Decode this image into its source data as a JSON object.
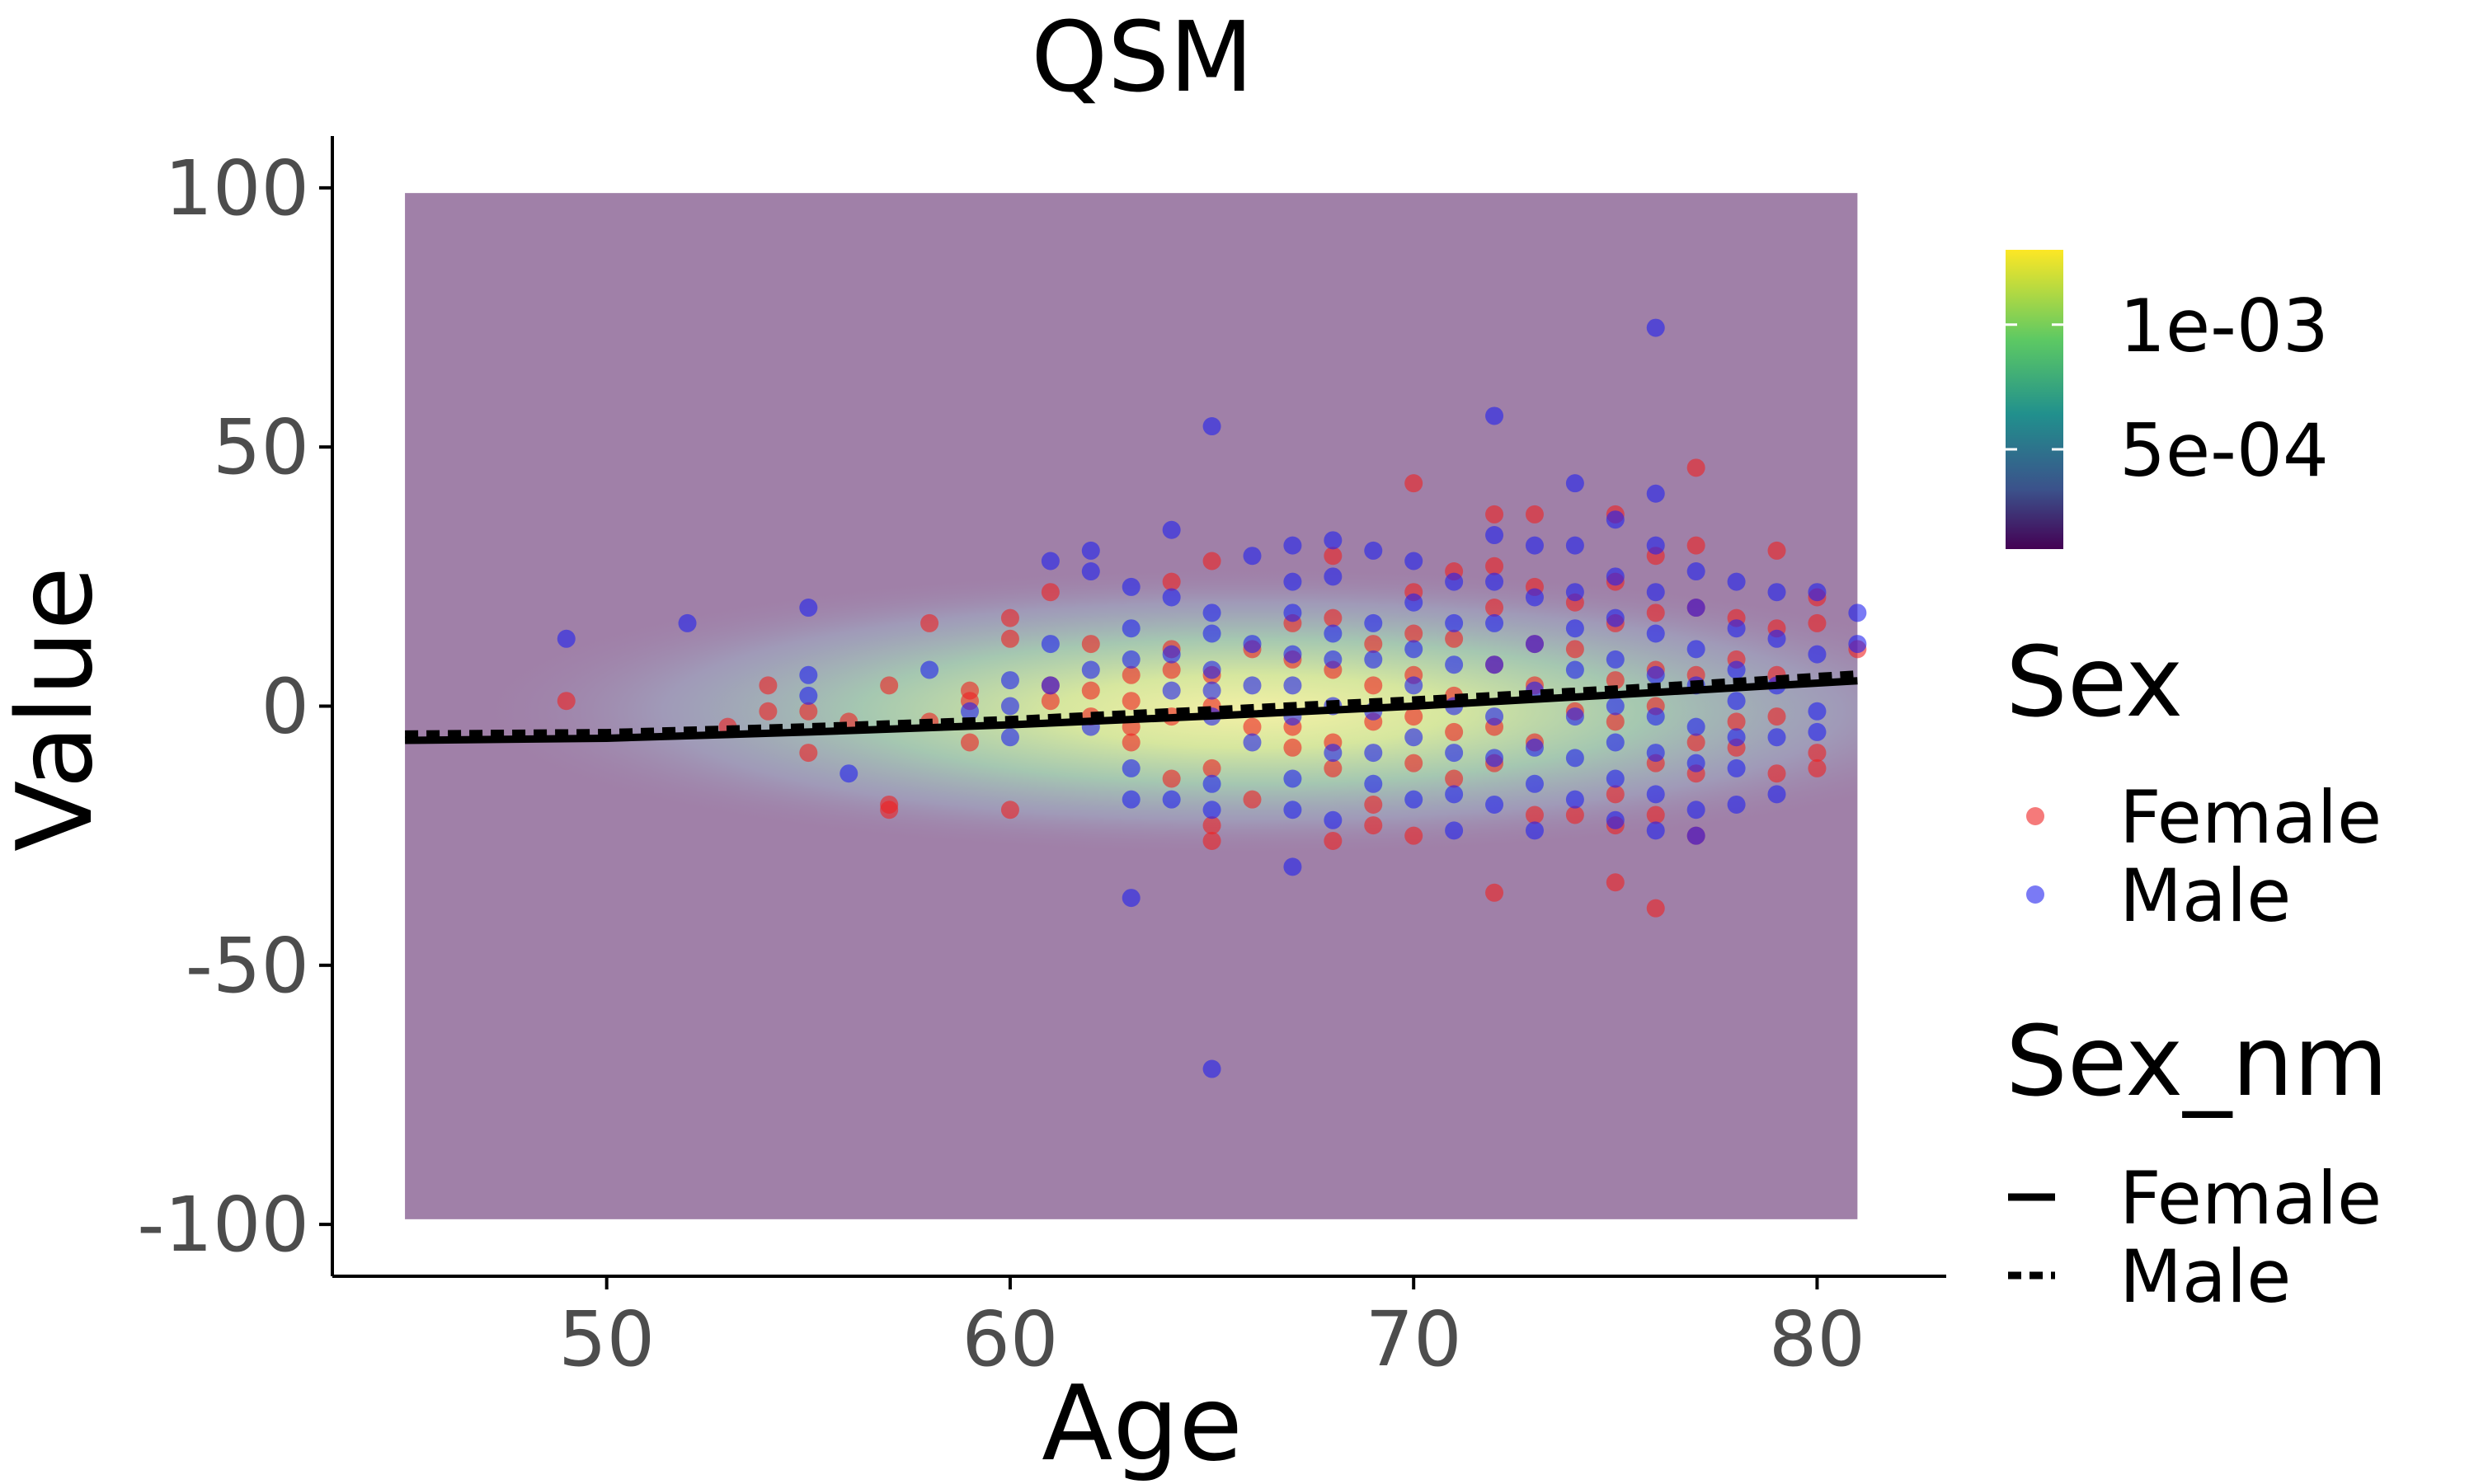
{
  "chart_data": {
    "type": "scatter",
    "title": "QSM",
    "xlabel": "Age",
    "ylabel": "Value",
    "xlim": [
      43.2,
      83.2
    ],
    "ylim": [
      -110,
      110
    ],
    "x_ticks": [
      50,
      60,
      70,
      80
    ],
    "y_ticks": [
      100,
      50,
      0,
      -50,
      -100
    ],
    "grid": false,
    "density_background": {
      "description": "2D density heatmap (viridis) over Age x Value",
      "x_range": [
        45,
        81
      ],
      "y_range": [
        -99,
        99
      ],
      "colorbar_ticks": [
        {
          "value": 0.0005,
          "label": "5e-04"
        },
        {
          "value": 0.001,
          "label": "1e-03"
        }
      ],
      "colorbar_range": [
        0.0001,
        0.0013
      ]
    },
    "legend_position": "right",
    "legend_points": {
      "title": "Sex",
      "entries": [
        {
          "label": "Female",
          "color": "#ee2222"
        },
        {
          "label": "Male",
          "color": "#2222ee"
        }
      ]
    },
    "legend_lines": {
      "title": "Sex_nm",
      "entries": [
        {
          "label": "Female",
          "style": "solid"
        },
        {
          "label": "Male",
          "style": "dashed"
        }
      ]
    },
    "series": [
      {
        "name": "Female",
        "color": "#ee2222",
        "points": [
          [
            49,
            1
          ],
          [
            53,
            -4
          ],
          [
            54,
            4
          ],
          [
            54,
            -1
          ],
          [
            55,
            -9
          ],
          [
            55,
            -1
          ],
          [
            56,
            -3
          ],
          [
            57,
            4
          ],
          [
            57,
            -19
          ],
          [
            57,
            -20
          ],
          [
            58,
            16
          ],
          [
            58,
            -3
          ],
          [
            59,
            3
          ],
          [
            59,
            1
          ],
          [
            59,
            -7
          ],
          [
            60,
            17
          ],
          [
            60,
            13
          ],
          [
            60,
            -20
          ],
          [
            61,
            22
          ],
          [
            61,
            4
          ],
          [
            61,
            1
          ],
          [
            62,
            12
          ],
          [
            62,
            3
          ],
          [
            62,
            -2
          ],
          [
            63,
            6
          ],
          [
            63,
            1
          ],
          [
            63,
            -4
          ],
          [
            63,
            -7
          ],
          [
            64,
            24
          ],
          [
            64,
            11
          ],
          [
            64,
            7
          ],
          [
            64,
            -2
          ],
          [
            64,
            -14
          ],
          [
            65,
            28
          ],
          [
            65,
            6
          ],
          [
            65,
            0
          ],
          [
            65,
            -12
          ],
          [
            65,
            -23
          ],
          [
            65,
            -26
          ],
          [
            66,
            11
          ],
          [
            66,
            -4
          ],
          [
            66,
            -18
          ],
          [
            67,
            16
          ],
          [
            67,
            9
          ],
          [
            67,
            -4
          ],
          [
            67,
            -8
          ],
          [
            68,
            29
          ],
          [
            68,
            17
          ],
          [
            68,
            7
          ],
          [
            68,
            -7
          ],
          [
            68,
            -12
          ],
          [
            68,
            -26
          ],
          [
            69,
            12
          ],
          [
            69,
            4
          ],
          [
            69,
            -3
          ],
          [
            69,
            -19
          ],
          [
            69,
            -23
          ],
          [
            70,
            43
          ],
          [
            70,
            22
          ],
          [
            70,
            14
          ],
          [
            70,
            6
          ],
          [
            70,
            -2
          ],
          [
            70,
            -11
          ],
          [
            70,
            -25
          ],
          [
            71,
            26
          ],
          [
            71,
            13
          ],
          [
            71,
            2
          ],
          [
            71,
            -5
          ],
          [
            71,
            -14
          ],
          [
            72,
            37
          ],
          [
            72,
            27
          ],
          [
            72,
            19
          ],
          [
            72,
            8
          ],
          [
            72,
            -4
          ],
          [
            72,
            -11
          ],
          [
            72,
            -36
          ],
          [
            73,
            37
          ],
          [
            73,
            23
          ],
          [
            73,
            12
          ],
          [
            73,
            4
          ],
          [
            73,
            -7
          ],
          [
            73,
            -21
          ],
          [
            74,
            20
          ],
          [
            74,
            11
          ],
          [
            74,
            -1
          ],
          [
            74,
            -21
          ],
          [
            75,
            37
          ],
          [
            75,
            24
          ],
          [
            75,
            16
          ],
          [
            75,
            5
          ],
          [
            75,
            -3
          ],
          [
            75,
            -17
          ],
          [
            75,
            -23
          ],
          [
            75,
            -34
          ],
          [
            76,
            29
          ],
          [
            76,
            18
          ],
          [
            76,
            7
          ],
          [
            76,
            0
          ],
          [
            76,
            -11
          ],
          [
            76,
            -21
          ],
          [
            76,
            -39
          ],
          [
            77,
            46
          ],
          [
            77,
            31
          ],
          [
            77,
            19
          ],
          [
            77,
            6
          ],
          [
            77,
            -7
          ],
          [
            77,
            -13
          ],
          [
            77,
            -25
          ],
          [
            78,
            17
          ],
          [
            78,
            9
          ],
          [
            78,
            -3
          ],
          [
            78,
            -8
          ],
          [
            79,
            30
          ],
          [
            79,
            15
          ],
          [
            79,
            6
          ],
          [
            79,
            -2
          ],
          [
            79,
            -13
          ],
          [
            80,
            21
          ],
          [
            80,
            16
          ],
          [
            80,
            -9
          ],
          [
            80,
            -12
          ],
          [
            81,
            11
          ]
        ]
      },
      {
        "name": "Male",
        "color": "#2222ee",
        "points": [
          [
            49,
            13
          ],
          [
            52,
            16
          ],
          [
            55,
            19
          ],
          [
            55,
            6
          ],
          [
            55,
            2
          ],
          [
            56,
            -13
          ],
          [
            58,
            7
          ],
          [
            59,
            -1
          ],
          [
            60,
            5
          ],
          [
            60,
            0
          ],
          [
            60,
            -6
          ],
          [
            61,
            28
          ],
          [
            61,
            12
          ],
          [
            61,
            4
          ],
          [
            62,
            30
          ],
          [
            62,
            26
          ],
          [
            62,
            7
          ],
          [
            62,
            -4
          ],
          [
            63,
            23
          ],
          [
            63,
            15
          ],
          [
            63,
            9
          ],
          [
            63,
            -12
          ],
          [
            63,
            -18
          ],
          [
            63,
            -37
          ],
          [
            64,
            34
          ],
          [
            64,
            21
          ],
          [
            64,
            10
          ],
          [
            64,
            3
          ],
          [
            64,
            -18
          ],
          [
            65,
            54
          ],
          [
            65,
            18
          ],
          [
            65,
            14
          ],
          [
            65,
            7
          ],
          [
            65,
            3
          ],
          [
            65,
            -2
          ],
          [
            65,
            -15
          ],
          [
            65,
            -20
          ],
          [
            65,
            -70
          ],
          [
            66,
            29
          ],
          [
            66,
            12
          ],
          [
            66,
            4
          ],
          [
            66,
            -7
          ],
          [
            67,
            31
          ],
          [
            67,
            24
          ],
          [
            67,
            18
          ],
          [
            67,
            10
          ],
          [
            67,
            4
          ],
          [
            67,
            -2
          ],
          [
            67,
            -14
          ],
          [
            67,
            -20
          ],
          [
            67,
            -31
          ],
          [
            68,
            32
          ],
          [
            68,
            25
          ],
          [
            68,
            14
          ],
          [
            68,
            9
          ],
          [
            68,
            0
          ],
          [
            68,
            -9
          ],
          [
            68,
            -22
          ],
          [
            69,
            30
          ],
          [
            69,
            16
          ],
          [
            69,
            9
          ],
          [
            69,
            -1
          ],
          [
            69,
            -9
          ],
          [
            69,
            -15
          ],
          [
            70,
            28
          ],
          [
            70,
            20
          ],
          [
            70,
            11
          ],
          [
            70,
            4
          ],
          [
            70,
            -6
          ],
          [
            70,
            -18
          ],
          [
            71,
            24
          ],
          [
            71,
            16
          ],
          [
            71,
            8
          ],
          [
            71,
            0
          ],
          [
            71,
            -9
          ],
          [
            71,
            -17
          ],
          [
            71,
            -24
          ],
          [
            72,
            56
          ],
          [
            72,
            33
          ],
          [
            72,
            24
          ],
          [
            72,
            16
          ],
          [
            72,
            8
          ],
          [
            72,
            -2
          ],
          [
            72,
            -10
          ],
          [
            72,
            -19
          ],
          [
            73,
            31
          ],
          [
            73,
            21
          ],
          [
            73,
            12
          ],
          [
            73,
            3
          ],
          [
            73,
            -8
          ],
          [
            73,
            -15
          ],
          [
            73,
            -24
          ],
          [
            74,
            43
          ],
          [
            74,
            31
          ],
          [
            74,
            22
          ],
          [
            74,
            15
          ],
          [
            74,
            7
          ],
          [
            74,
            -2
          ],
          [
            74,
            -10
          ],
          [
            74,
            -18
          ],
          [
            75,
            36
          ],
          [
            75,
            25
          ],
          [
            75,
            17
          ],
          [
            75,
            9
          ],
          [
            75,
            0
          ],
          [
            75,
            -7
          ],
          [
            75,
            -14
          ],
          [
            75,
            -22
          ],
          [
            76,
            73
          ],
          [
            76,
            41
          ],
          [
            76,
            31
          ],
          [
            76,
            22
          ],
          [
            76,
            14
          ],
          [
            76,
            6
          ],
          [
            76,
            -2
          ],
          [
            76,
            -9
          ],
          [
            76,
            -17
          ],
          [
            76,
            -24
          ],
          [
            77,
            26
          ],
          [
            77,
            19
          ],
          [
            77,
            11
          ],
          [
            77,
            4
          ],
          [
            77,
            -4
          ],
          [
            77,
            -11
          ],
          [
            77,
            -20
          ],
          [
            77,
            -25
          ],
          [
            78,
            24
          ],
          [
            78,
            15
          ],
          [
            78,
            7
          ],
          [
            78,
            1
          ],
          [
            78,
            -6
          ],
          [
            78,
            -12
          ],
          [
            78,
            -19
          ],
          [
            79,
            22
          ],
          [
            79,
            13
          ],
          [
            79,
            4
          ],
          [
            79,
            -6
          ],
          [
            79,
            -17
          ],
          [
            80,
            22
          ],
          [
            80,
            10
          ],
          [
            80,
            -1
          ],
          [
            80,
            -5
          ],
          [
            81,
            18
          ],
          [
            81,
            12
          ]
        ]
      }
    ],
    "fit_lines": [
      {
        "name": "Female",
        "style": "solid",
        "x": [
          45,
          50,
          55,
          60,
          65,
          70,
          75,
          81
        ],
        "y": [
          -6.6,
          -6.2,
          -5.0,
          -3.6,
          -1.9,
          0,
          2.2,
          4.9
        ]
      },
      {
        "name": "Male",
        "style": "dashed",
        "x": [
          45,
          50,
          55,
          60,
          65,
          70,
          75,
          81
        ],
        "y": [
          -5.4,
          -5.1,
          -4.0,
          -2.6,
          -0.7,
          1.2,
          3.3,
          6.2
        ]
      }
    ]
  }
}
